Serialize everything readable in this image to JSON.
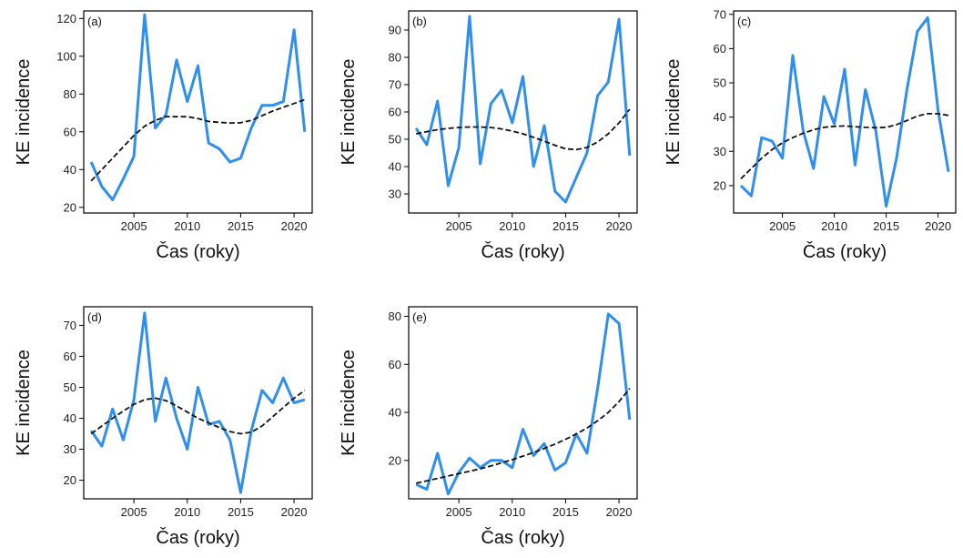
{
  "colors": {
    "observed": "#2f8ff0",
    "trend": "#111111",
    "axis": "#000000"
  },
  "chart_data": [
    {
      "type": "line",
      "panel_label": "(a)",
      "xlabel": "Čas (roky)",
      "ylabel": "KE incidence",
      "xlim": [
        2000.3,
        2021.7
      ],
      "ylim": [
        17,
        124
      ],
      "xticks": [
        2005,
        2010,
        2015,
        2020
      ],
      "yticks": [
        20,
        40,
        60,
        80,
        100,
        120
      ],
      "x": [
        2001,
        2002,
        2003,
        2004,
        2005,
        2006,
        2007,
        2008,
        2009,
        2010,
        2011,
        2012,
        2013,
        2014,
        2015,
        2016,
        2017,
        2018,
        2019,
        2020,
        2021
      ],
      "series": [
        {
          "style": "solid",
          "values": [
            44,
            31,
            24,
            35,
            47,
            122,
            62,
            69,
            98,
            76,
            95,
            54,
            51,
            44,
            46,
            62,
            74,
            74,
            76,
            114,
            60
          ]
        },
        {
          "style": "dashed",
          "values": [
            34,
            40,
            46,
            52,
            58,
            63,
            66,
            68,
            68,
            68,
            67,
            65.5,
            65,
            64.6,
            64.8,
            66,
            68.5,
            71,
            73,
            75,
            77
          ]
        }
      ]
    },
    {
      "type": "line",
      "panel_label": "(b)",
      "xlabel": "Čas (roky)",
      "ylabel": "KE incidence",
      "xlim": [
        2000.3,
        2021.7
      ],
      "ylim": [
        23,
        97
      ],
      "xticks": [
        2005,
        2010,
        2015,
        2020
      ],
      "yticks": [
        30,
        40,
        50,
        60,
        70,
        80,
        90
      ],
      "x": [
        2001,
        2002,
        2003,
        2004,
        2005,
        2006,
        2007,
        2008,
        2009,
        2010,
        2011,
        2012,
        2013,
        2014,
        2015,
        2016,
        2017,
        2018,
        2019,
        2020,
        2021
      ],
      "series": [
        {
          "style": "solid",
          "values": [
            54,
            48,
            64,
            33,
            47,
            95,
            41,
            63,
            68,
            56,
            73,
            40,
            55,
            31,
            27,
            36,
            45,
            66,
            71,
            94,
            44
          ]
        },
        {
          "style": "dashed",
          "values": [
            52,
            52.8,
            53.5,
            54,
            54.3,
            54.5,
            54.5,
            54.3,
            53.8,
            53,
            52,
            50.7,
            49.3,
            47.8,
            46.5,
            46.2,
            47,
            49,
            52,
            56,
            61
          ]
        }
      ]
    },
    {
      "type": "line",
      "panel_label": "(c)",
      "xlabel": "Čas (roky)",
      "ylabel": "KE incidence",
      "xlim": [
        2000.3,
        2021.7
      ],
      "ylim": [
        12,
        71
      ],
      "xticks": [
        2005,
        2010,
        2015,
        2020
      ],
      "yticks": [
        20,
        30,
        40,
        50,
        60,
        70
      ],
      "x": [
        2001,
        2002,
        2003,
        2004,
        2005,
        2006,
        2007,
        2008,
        2009,
        2010,
        2011,
        2012,
        2013,
        2014,
        2015,
        2016,
        2017,
        2018,
        2019,
        2020,
        2021
      ],
      "series": [
        {
          "style": "solid",
          "values": [
            20,
            17,
            34,
            33,
            28,
            58,
            36,
            25,
            46,
            38,
            54,
            26,
            48,
            36,
            14,
            28,
            48,
            65,
            69,
            42,
            24
          ]
        },
        {
          "style": "dashed",
          "values": [
            22,
            25,
            28,
            30.5,
            32.5,
            34,
            35.3,
            36.3,
            37,
            37.3,
            37.4,
            37.2,
            37,
            36.9,
            37,
            37.8,
            39,
            40.3,
            41,
            41,
            40.5
          ]
        }
      ]
    },
    {
      "type": "line",
      "panel_label": "(d)",
      "xlabel": "Čas (roky)",
      "ylabel": "KE incidence",
      "xlim": [
        2000.3,
        2021.7
      ],
      "ylim": [
        14,
        76
      ],
      "xticks": [
        2005,
        2010,
        2015,
        2020
      ],
      "yticks": [
        20,
        30,
        40,
        50,
        60,
        70
      ],
      "x": [
        2001,
        2002,
        2003,
        2004,
        2005,
        2006,
        2007,
        2008,
        2009,
        2010,
        2011,
        2012,
        2013,
        2014,
        2015,
        2016,
        2017,
        2018,
        2019,
        2020,
        2021
      ],
      "series": [
        {
          "style": "solid",
          "values": [
            36,
            31,
            43,
            33,
            46,
            74,
            39,
            53,
            40,
            30,
            50,
            38,
            39,
            33,
            16,
            36,
            49,
            45,
            53,
            45,
            46
          ]
        },
        {
          "style": "dashed",
          "values": [
            35,
            37.5,
            40,
            42.3,
            44.5,
            46,
            46.5,
            45.7,
            44,
            42,
            40,
            38.5,
            37,
            35.7,
            35,
            35.5,
            37.5,
            40.5,
            43.5,
            46.5,
            49
          ]
        }
      ]
    },
    {
      "type": "line",
      "panel_label": "(e)",
      "xlabel": "Čas (roky)",
      "ylabel": "KE incidence",
      "xlim": [
        2000.3,
        2021.7
      ],
      "ylim": [
        4,
        84
      ],
      "xticks": [
        2005,
        2010,
        2015,
        2020
      ],
      "yticks": [
        20,
        40,
        60,
        80
      ],
      "x": [
        2001,
        2002,
        2003,
        2004,
        2005,
        2006,
        2007,
        2008,
        2009,
        2010,
        2011,
        2012,
        2013,
        2014,
        2015,
        2016,
        2017,
        2018,
        2019,
        2020,
        2021
      ],
      "series": [
        {
          "style": "solid",
          "values": [
            10,
            8,
            23,
            6,
            15,
            21,
            17,
            20,
            20,
            17,
            33,
            22,
            27,
            16,
            19,
            31,
            23,
            50,
            81,
            77,
            37
          ]
        },
        {
          "style": "dashed",
          "values": [
            10.5,
            11.5,
            12.5,
            13.5,
            14.5,
            15.5,
            16.5,
            17.7,
            19,
            20.3,
            21.8,
            23.3,
            25,
            26.8,
            28.8,
            31,
            33.5,
            36.5,
            40,
            44.5,
            50
          ]
        }
      ]
    }
  ]
}
